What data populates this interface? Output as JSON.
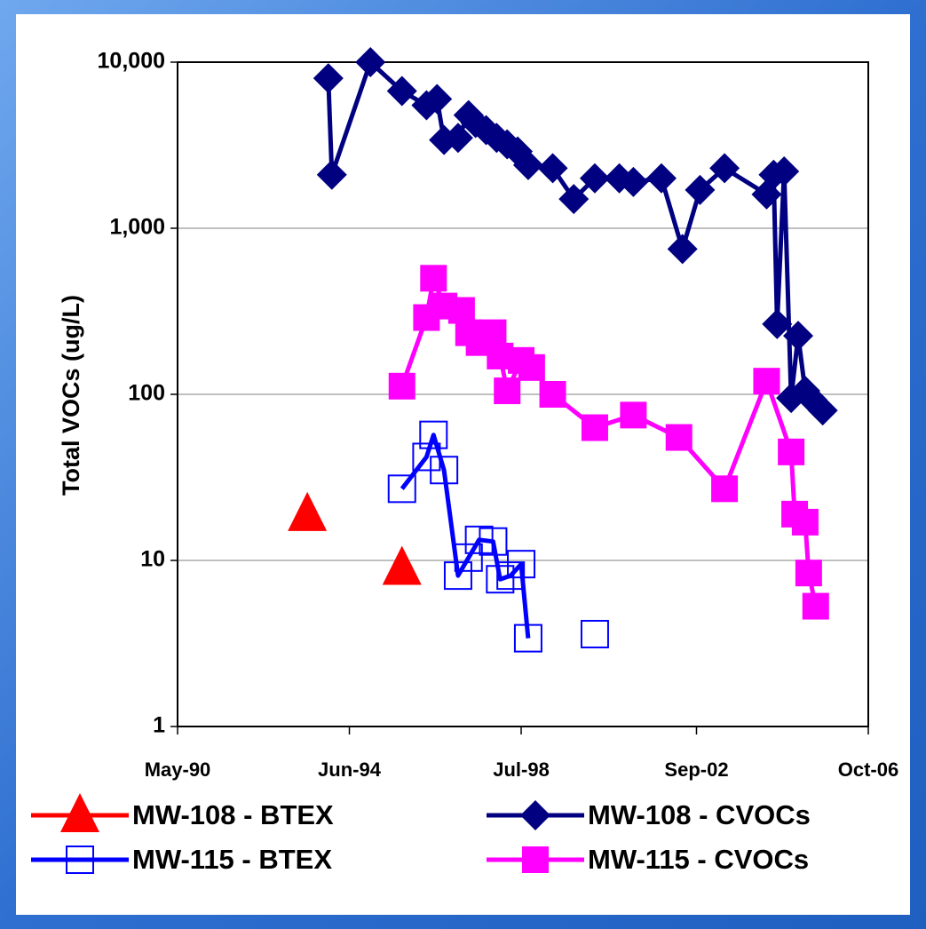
{
  "chart_data": {
    "type": "line",
    "ylabel": "Total VOCs (ug/L)",
    "log_y": true,
    "grid": true,
    "ylim": [
      1,
      10000
    ],
    "yticks": [
      1,
      10,
      100,
      {
        "value": 1000,
        "label": "1,000"
      },
      {
        "value": 10000,
        "label": "10,000"
      }
    ],
    "xlim": [
      "1990-05",
      "2006-10"
    ],
    "xticks": [
      {
        "value": "1990-05",
        "label": "May-90"
      },
      {
        "value": "1994-06",
        "label": "Jun-94"
      },
      {
        "value": "1998-07",
        "label": "Jul-98"
      },
      {
        "value": "2002-09",
        "label": "Sep-02"
      },
      {
        "value": "2006-10",
        "label": "Oct-06"
      }
    ],
    "legend": "bottom",
    "series": [
      {
        "name": "MW-108 - BTEX",
        "color": "#ff0000",
        "marker": "triangle",
        "connect": false,
        "x": [
          "1993-06",
          "1995-09"
        ],
        "values": [
          19,
          9
        ]
      },
      {
        "name": "MW-108 - CVOCs",
        "color": "#000080",
        "marker": "diamond",
        "connect": true,
        "x": [
          "1993-12",
          "1994-01",
          "1994-12",
          "1995-09",
          "1996-04",
          "1996-07",
          "1996-09",
          "1997-01",
          "1997-04",
          "1997-06",
          "1997-09",
          "1997-12",
          "1998-03",
          "1998-06",
          "1998-09",
          "1999-04",
          "1999-10",
          "2000-04",
          "2000-11",
          "2001-03",
          "2001-11",
          "2002-05",
          "2002-10",
          "2003-05",
          "2004-05",
          "2004-07",
          "2004-08",
          "2004-10",
          "2004-12",
          "2005-02",
          "2005-04",
          "2005-06",
          "2005-09"
        ],
        "values": [
          8000,
          2100,
          10000,
          6700,
          5500,
          6000,
          3400,
          3500,
          4800,
          4300,
          3900,
          3500,
          3200,
          2900,
          2400,
          2300,
          1500,
          2000,
          2000,
          1900,
          2000,
          750,
          1700,
          2300,
          1600,
          2100,
          265,
          2200,
          95,
          225,
          105,
          93,
          80
        ]
      },
      {
        "name": "MW-115 - BTEX",
        "color": "#0000ff",
        "marker": "open-square",
        "connect": true,
        "x": [
          "1995-09",
          "1996-04",
          "1996-06",
          "1996-09",
          "1997-01",
          "1997-04",
          "1997-07",
          "1997-11",
          "1998-01",
          "1998-04",
          "1998-07",
          "1998-09",
          "1999-06",
          "2000-04"
        ],
        "values": [
          27,
          42,
          57,
          35,
          8.1,
          10.4,
          13.3,
          13,
          7.7,
          8.1,
          9.5,
          3.4,
          null,
          3.6
        ]
      },
      {
        "name": "MW-115 - CVOCs",
        "color": "#ff00ff",
        "marker": "square",
        "connect": true,
        "x": [
          "1995-09",
          "1996-04",
          "1996-06",
          "1996-09",
          "1997-02",
          "1997-04",
          "1997-07",
          "1997-11",
          "1998-01",
          "1998-03",
          "1998-07",
          "1998-10",
          "1999-04",
          "2000-04",
          "2001-03",
          "2002-04",
          "2003-05",
          "2004-05",
          "2004-12",
          "2005-01",
          "2005-04",
          "2005-05",
          "2005-07"
        ],
        "values": [
          112,
          290,
          500,
          340,
          320,
          235,
          205,
          235,
          170,
          105,
          160,
          145,
          100,
          63,
          75,
          55,
          27,
          120,
          45,
          19,
          17,
          8.4,
          5.3
        ]
      }
    ]
  }
}
